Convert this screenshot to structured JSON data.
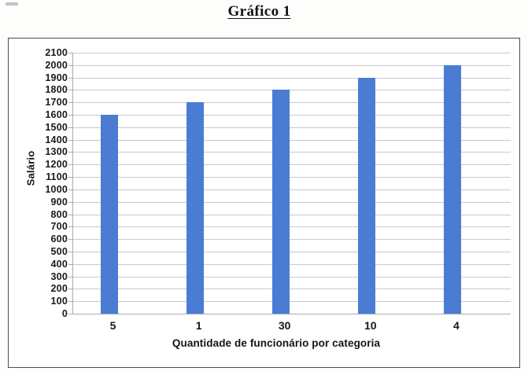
{
  "title": {
    "text": "Gráfico 1"
  },
  "chart_data": {
    "type": "bar",
    "title": "Gráfico 1",
    "categories": [
      "5",
      "1",
      "30",
      "10",
      "4"
    ],
    "values": [
      1600,
      1700,
      1800,
      1900,
      2000
    ],
    "xlabel": "Quantidade de funcionário por categoria",
    "ylabel": "Salário",
    "ylim": [
      0,
      2100
    ],
    "ytick_step": 100,
    "yticks": [
      0,
      100,
      200,
      300,
      400,
      500,
      600,
      700,
      800,
      900,
      1000,
      1100,
      1200,
      1300,
      1400,
      1500,
      1600,
      1700,
      1800,
      1900,
      2000,
      2100
    ],
    "grid": true,
    "legend": "none",
    "colors": {
      "bar": "#4b7cd4",
      "gridline": "#c7c9d1",
      "axis": "#a9abb5",
      "frame_border": "#4e4e50",
      "text": "#1b1b1b"
    }
  }
}
